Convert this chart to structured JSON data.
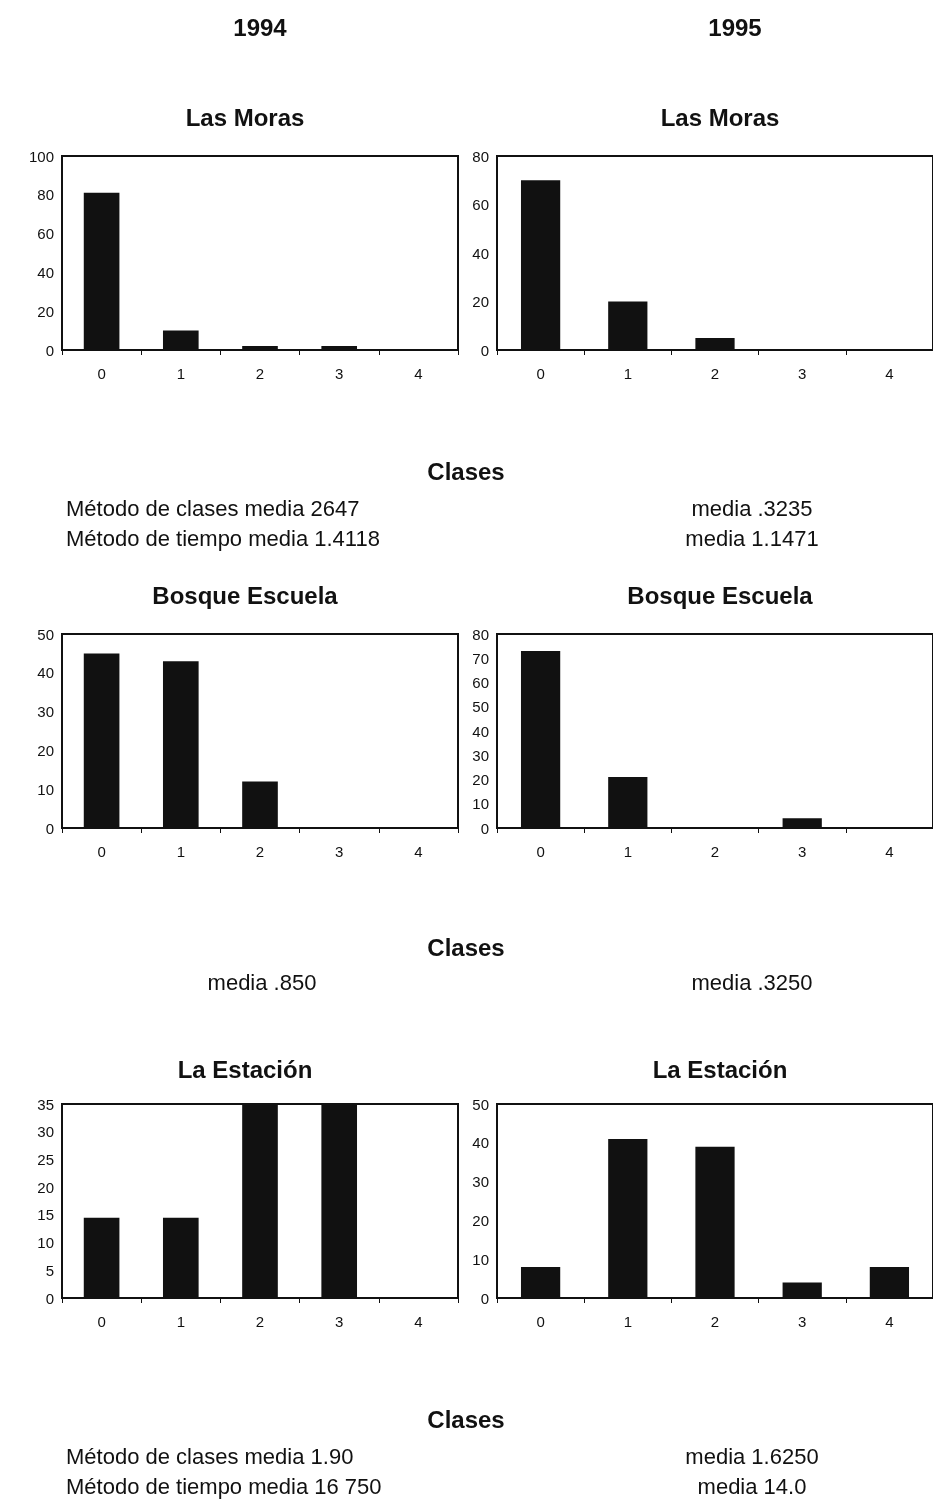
{
  "chart_data": [
    {
      "type": "bar",
      "title": "1994",
      "subtitle": "Las Moras",
      "xlabel": "Clases",
      "categories": [
        "0",
        "1",
        "2",
        "3",
        "4"
      ],
      "series": [
        {
          "color": "#111111",
          "values": [
            81,
            10,
            2,
            2,
            0
          ]
        }
      ],
      "ylim": [
        0,
        100
      ],
      "yticks": [
        0,
        20,
        40,
        60,
        80,
        100
      ],
      "grid": false,
      "annotations": [
        "Método de clases media 2647",
        "Método de tiempo media 1.4118"
      ]
    },
    {
      "type": "bar",
      "title": "1995",
      "subtitle": "Las Moras",
      "categories": [
        "0",
        "1",
        "2",
        "3",
        "4"
      ],
      "series": [
        {
          "color": "#111111",
          "values": [
            70,
            20,
            5,
            0,
            0
          ]
        }
      ],
      "ylim": [
        0,
        80
      ],
      "yticks": [
        0,
        20,
        40,
        60,
        80
      ],
      "grid": false,
      "annotations": [
        "media .3235",
        "media 1.1471"
      ]
    },
    {
      "type": "bar",
      "title": "Bosque Escuela",
      "xlabel": "Clases",
      "categories": [
        "0",
        "1",
        "2",
        "3",
        "4"
      ],
      "series": [
        {
          "color": "#111111",
          "values": [
            45,
            43,
            12,
            0,
            0
          ]
        }
      ],
      "ylim": [
        0,
        50
      ],
      "yticks": [
        0,
        10,
        20,
        30,
        40,
        50
      ],
      "grid": false,
      "annotations": [
        "media .850"
      ]
    },
    {
      "type": "bar",
      "title": "Bosque Escuela",
      "categories": [
        "0",
        "1",
        "2",
        "3",
        "4"
      ],
      "series": [
        {
          "color": "#111111",
          "values": [
            73,
            21,
            0,
            4,
            0
          ]
        }
      ],
      "ylim": [
        0,
        80
      ],
      "yticks": [
        0,
        10,
        20,
        30,
        40,
        50,
        60,
        70,
        80
      ],
      "grid": false,
      "annotations": [
        "media .3250"
      ]
    },
    {
      "type": "bar",
      "title": "La Estación",
      "xlabel": "Clases",
      "categories": [
        "0",
        "1",
        "2",
        "3",
        "4"
      ],
      "series": [
        {
          "color": "#111111",
          "values": [
            14.5,
            14.5,
            35,
            35,
            0
          ]
        }
      ],
      "ylim": [
        0,
        35
      ],
      "yticks": [
        0,
        5,
        10,
        15,
        20,
        25,
        30,
        35
      ],
      "grid": false,
      "annotations": [
        "Método de clases media 1.90",
        "Método de tiempo media 16 750"
      ]
    },
    {
      "type": "bar",
      "title": "La Estación",
      "categories": [
        "0",
        "1",
        "2",
        "3",
        "4"
      ],
      "series": [
        {
          "color": "#111111",
          "values": [
            8,
            41,
            39,
            4,
            8
          ]
        }
      ],
      "ylim": [
        0,
        50
      ],
      "yticks": [
        0,
        10,
        20,
        30,
        40,
        50
      ],
      "grid": false,
      "annotations": [
        "media 1.6250",
        "media 14.0"
      ]
    }
  ]
}
